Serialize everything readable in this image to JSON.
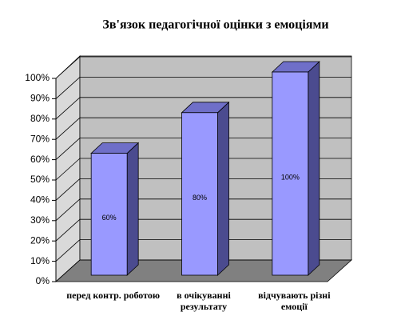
{
  "chart_data": {
    "type": "bar3d",
    "title": "Зв'язок педагогічної оцінки з емоціями",
    "categories": [
      "перед контр. роботою",
      "в очікуванні результату",
      "відчувають різні емоції"
    ],
    "values": [
      60,
      80,
      100
    ],
    "value_labels": [
      "60%",
      "80%",
      "100%"
    ],
    "color": "#9999ff",
    "ylim": [
      0,
      100
    ],
    "yticks": [
      {
        "value": 0,
        "label": "0%"
      },
      {
        "value": 10,
        "label": "10%"
      },
      {
        "value": 20,
        "label": "20%"
      },
      {
        "value": 30,
        "label": "30%"
      },
      {
        "value": 40,
        "label": "40%"
      },
      {
        "value": 50,
        "label": "50%"
      },
      {
        "value": 60,
        "label": "60%"
      },
      {
        "value": 70,
        "label": "70%"
      },
      {
        "value": 80,
        "label": "80%"
      },
      {
        "value": 90,
        "label": "90%"
      },
      {
        "value": 100,
        "label": "100%"
      }
    ],
    "grid": true
  }
}
